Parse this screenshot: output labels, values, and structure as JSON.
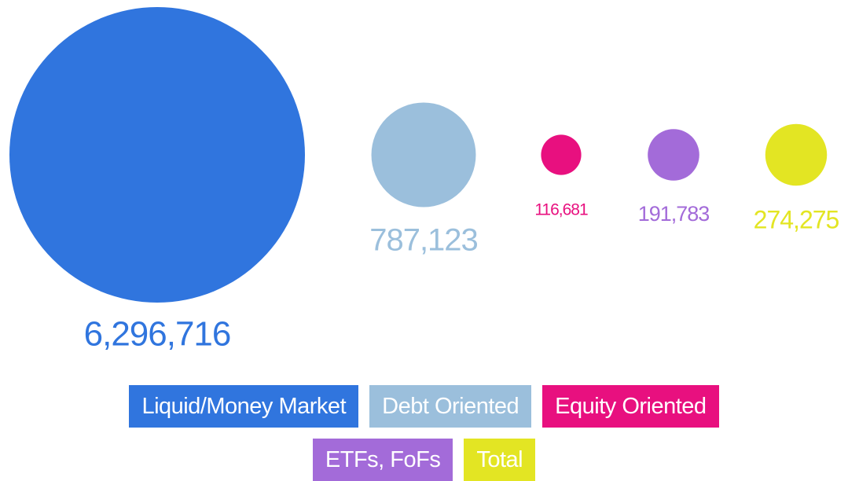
{
  "chart_data": {
    "type": "bubble",
    "categories": [
      "Liquid/Money Market",
      "Debt Oriented",
      "Equity Oriented",
      "ETFs, FoFs",
      "Total"
    ],
    "values": [
      6296716,
      787123,
      116681,
      191783,
      274275
    ],
    "value_labels": [
      "6,296,716",
      "787,123",
      "116,681",
      "191,783",
      "274,275"
    ],
    "colors": [
      "#3075de",
      "#9bbfdc",
      "#e8107f",
      "#a36bd9",
      "#e3e523"
    ]
  }
}
